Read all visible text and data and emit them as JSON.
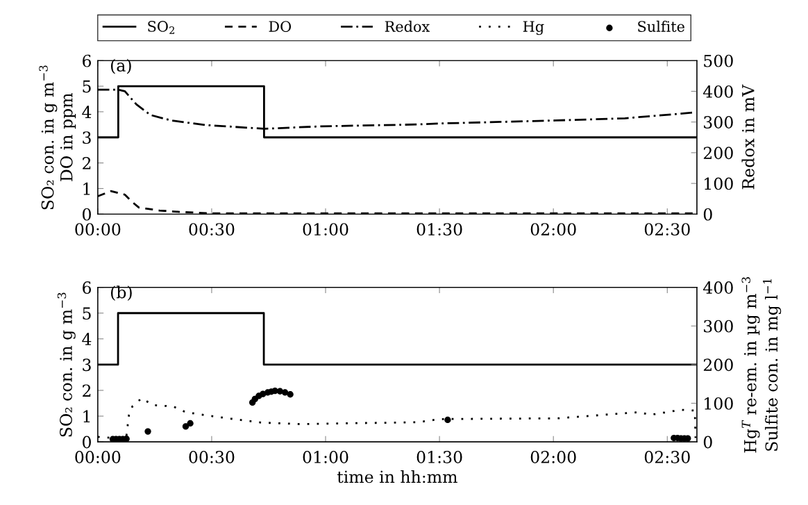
{
  "chart_data": [
    {
      "type": "line",
      "annotations": [
        "(a)"
      ],
      "ylabel": "SO₂ con. in g m$^{−3}$\nDO in ppm",
      "y2label": "Redox in mV",
      "xlim": [
        0,
        2.63
      ],
      "xticks": [
        {
          "value": 0,
          "label": "00:00"
        },
        {
          "value": 0.5,
          "label": "00:30"
        },
        {
          "value": 1,
          "label": "01:00"
        },
        {
          "value": 1.5,
          "label": "01:30"
        },
        {
          "value": 2,
          "label": "02:00"
        },
        {
          "value": 2.5,
          "label": "02:30"
        }
      ],
      "ylim": [
        0,
        6
      ],
      "yticks": [
        0,
        1,
        2,
        3,
        4,
        5,
        6
      ],
      "y2lim": [
        0,
        500
      ],
      "y2ticks": [
        0,
        100,
        200,
        300,
        400,
        500
      ],
      "grid": false,
      "legend": "top",
      "series": [
        {
          "name": "SO$_{2}$",
          "type": "step",
          "color": "#000000",
          "line_style": "solid",
          "x": [
            0,
            0.09,
            0.73,
            2.63
          ],
          "values": [
            3,
            5,
            3,
            3
          ]
        },
        {
          "name": "DO",
          "color": "#000000",
          "line_style": "dashed",
          "x": [
            0,
            0.058,
            0.119,
            0.149,
            0.18,
            0.271,
            0.372,
            0.502,
            1.0,
            2.0,
            2.63
          ],
          "values": [
            0.7,
            0.9,
            0.76,
            0.49,
            0.26,
            0.14,
            0.08,
            0.03,
            0.03,
            0.03,
            0.03
          ]
        },
        {
          "name": "Redox",
          "axis": "y2",
          "color": "#000000",
          "line_style": "dashdot",
          "x": [
            0,
            0.09,
            0.119,
            0.17,
            0.231,
            0.322,
            0.475,
            0.731,
            0.982,
            1.4,
            1.491,
            2.009,
            2.314,
            2.619
          ],
          "values": [
            405,
            405,
            400,
            357,
            323,
            305,
            290,
            278,
            286,
            292,
            295,
            305,
            312,
            331
          ]
        }
      ]
    },
    {
      "type": "line",
      "annotations": [
        "(b)"
      ],
      "ylabel": "SO₂ con. in g m$^{−3}$",
      "y2label": "Hg$^{T}$ re-em. in µg m$^{−3}$\nSulfite con. in mg l$^{−1}$",
      "xlabel": "time in hh:mm",
      "xlim": [
        0,
        2.63
      ],
      "xticks": [
        {
          "value": 0,
          "label": "00:00"
        },
        {
          "value": 0.5,
          "label": "00:30"
        },
        {
          "value": 1,
          "label": "01:00"
        },
        {
          "value": 1.5,
          "label": "01:30"
        },
        {
          "value": 2,
          "label": "02:00"
        },
        {
          "value": 2.5,
          "label": "02:30"
        }
      ],
      "ylim": [
        0,
        6
      ],
      "yticks": [
        0,
        1,
        2,
        3,
        4,
        5,
        6
      ],
      "y2lim": [
        0,
        400
      ],
      "y2ticks": [
        0,
        100,
        200,
        300,
        400
      ],
      "grid": false,
      "legend": "top",
      "series": [
        {
          "name": "SO$_{2}$",
          "type": "step",
          "color": "#000000",
          "line_style": "solid",
          "x": [
            0,
            0.089,
            0.729,
            2.63
          ],
          "values": [
            3,
            5,
            3,
            3
          ]
        },
        {
          "name": "Hg",
          "axis": "y2",
          "color": "#000000",
          "line_style": "dotted",
          "x": [
            0,
            0.075,
            0.126,
            0.132,
            0.137,
            0.152,
            0.193,
            0.243,
            0.33,
            0.386,
            0.483,
            0.585,
            0.717,
            0.89,
            1.094,
            1.409,
            1.501,
            2.02,
            2.376,
            2.426,
            2.56,
            2.621,
            2.624
          ],
          "values": [
            13,
            10,
            16,
            46,
            70,
            92,
            113,
            95,
            92,
            77,
            68,
            60,
            50,
            46,
            48,
            51,
            59,
            61,
            77,
            70,
            83,
            81,
            10
          ]
        },
        {
          "name": "Sulfite",
          "type": "scatter",
          "axis": "y2",
          "color": "#000000",
          "marker": "circle",
          "x": [
            0.066,
            0.08,
            0.095,
            0.11,
            0.126,
            0.22,
            0.386,
            0.406,
            0.679,
            0.69,
            0.707,
            0.725,
            0.746,
            0.762,
            0.778,
            0.8,
            0.822,
            0.845,
            1.536,
            2.529,
            2.545,
            2.56,
            2.575,
            2.59
          ],
          "values": [
            7,
            7,
            7,
            7,
            8,
            27,
            40,
            48,
            102,
            111,
            119,
            124,
            128,
            130,
            132,
            131,
            128,
            123,
            57,
            10,
            10,
            9,
            9,
            9
          ]
        }
      ]
    }
  ]
}
